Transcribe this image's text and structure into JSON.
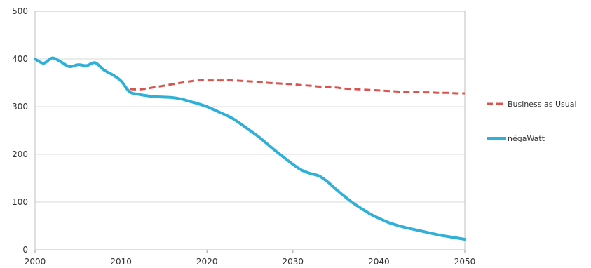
{
  "chart_data": {
    "type": "line",
    "title": "",
    "xlabel": "",
    "ylabel": "",
    "xlim": [
      2000,
      2050
    ],
    "ylim": [
      0,
      500
    ],
    "x_ticks": [
      "2000",
      "2010",
      "2020",
      "2030",
      "2040",
      "2050"
    ],
    "y_ticks": [
      "0",
      "100",
      "200",
      "300",
      "400",
      "500"
    ],
    "grid": "horizontal",
    "legend_position": "right",
    "series": [
      {
        "name": "Business as Usual",
        "color": "#d9534f",
        "dash": "dashed",
        "points": [
          [
            2011,
            337
          ],
          [
            2012,
            336
          ],
          [
            2013,
            338
          ],
          [
            2014,
            341
          ],
          [
            2015,
            344
          ],
          [
            2016,
            347
          ],
          [
            2017,
            350
          ],
          [
            2018,
            353
          ],
          [
            2019,
            355
          ],
          [
            2020,
            355
          ],
          [
            2021,
            355
          ],
          [
            2022,
            355
          ],
          [
            2023,
            355
          ],
          [
            2024,
            354
          ],
          [
            2025,
            353
          ],
          [
            2026,
            352
          ],
          [
            2027,
            350
          ],
          [
            2028,
            349
          ],
          [
            2029,
            348
          ],
          [
            2030,
            347
          ],
          [
            2031,
            345
          ],
          [
            2032,
            344
          ],
          [
            2033,
            342
          ],
          [
            2034,
            341
          ],
          [
            2035,
            340
          ],
          [
            2036,
            338
          ],
          [
            2037,
            337
          ],
          [
            2038,
            336
          ],
          [
            2039,
            335
          ],
          [
            2040,
            334
          ],
          [
            2041,
            333
          ],
          [
            2042,
            332
          ],
          [
            2043,
            331
          ],
          [
            2044,
            331
          ],
          [
            2045,
            330
          ],
          [
            2046,
            330
          ],
          [
            2047,
            329
          ],
          [
            2048,
            329
          ],
          [
            2049,
            328
          ],
          [
            2050,
            328
          ]
        ]
      },
      {
        "name": "négaWatt",
        "color": "#2fb0d8",
        "dash": "solid",
        "points": [
          [
            2000,
            400
          ],
          [
            2001,
            391
          ],
          [
            2002,
            402
          ],
          [
            2003,
            394
          ],
          [
            2004,
            384
          ],
          [
            2005,
            388
          ],
          [
            2006,
            386
          ],
          [
            2007,
            392
          ],
          [
            2008,
            377
          ],
          [
            2009,
            367
          ],
          [
            2010,
            354
          ],
          [
            2011,
            331
          ],
          [
            2012,
            326
          ],
          [
            2013,
            323
          ],
          [
            2014,
            321
          ],
          [
            2015,
            320
          ],
          [
            2016,
            319
          ],
          [
            2017,
            316
          ],
          [
            2018,
            311
          ],
          [
            2019,
            306
          ],
          [
            2020,
            300
          ],
          [
            2021,
            292
          ],
          [
            2022,
            284
          ],
          [
            2023,
            275
          ],
          [
            2024,
            263
          ],
          [
            2025,
            250
          ],
          [
            2026,
            237
          ],
          [
            2027,
            222
          ],
          [
            2028,
            207
          ],
          [
            2029,
            193
          ],
          [
            2030,
            179
          ],
          [
            2031,
            167
          ],
          [
            2032,
            160
          ],
          [
            2033,
            155
          ],
          [
            2034,
            143
          ],
          [
            2035,
            127
          ],
          [
            2036,
            112
          ],
          [
            2037,
            98
          ],
          [
            2038,
            86
          ],
          [
            2039,
            75
          ],
          [
            2040,
            66
          ],
          [
            2041,
            58
          ],
          [
            2042,
            52
          ],
          [
            2043,
            47
          ],
          [
            2044,
            43
          ],
          [
            2045,
            39
          ],
          [
            2046,
            35
          ],
          [
            2047,
            31
          ],
          [
            2048,
            28
          ],
          [
            2049,
            25
          ],
          [
            2050,
            22
          ]
        ]
      }
    ]
  }
}
